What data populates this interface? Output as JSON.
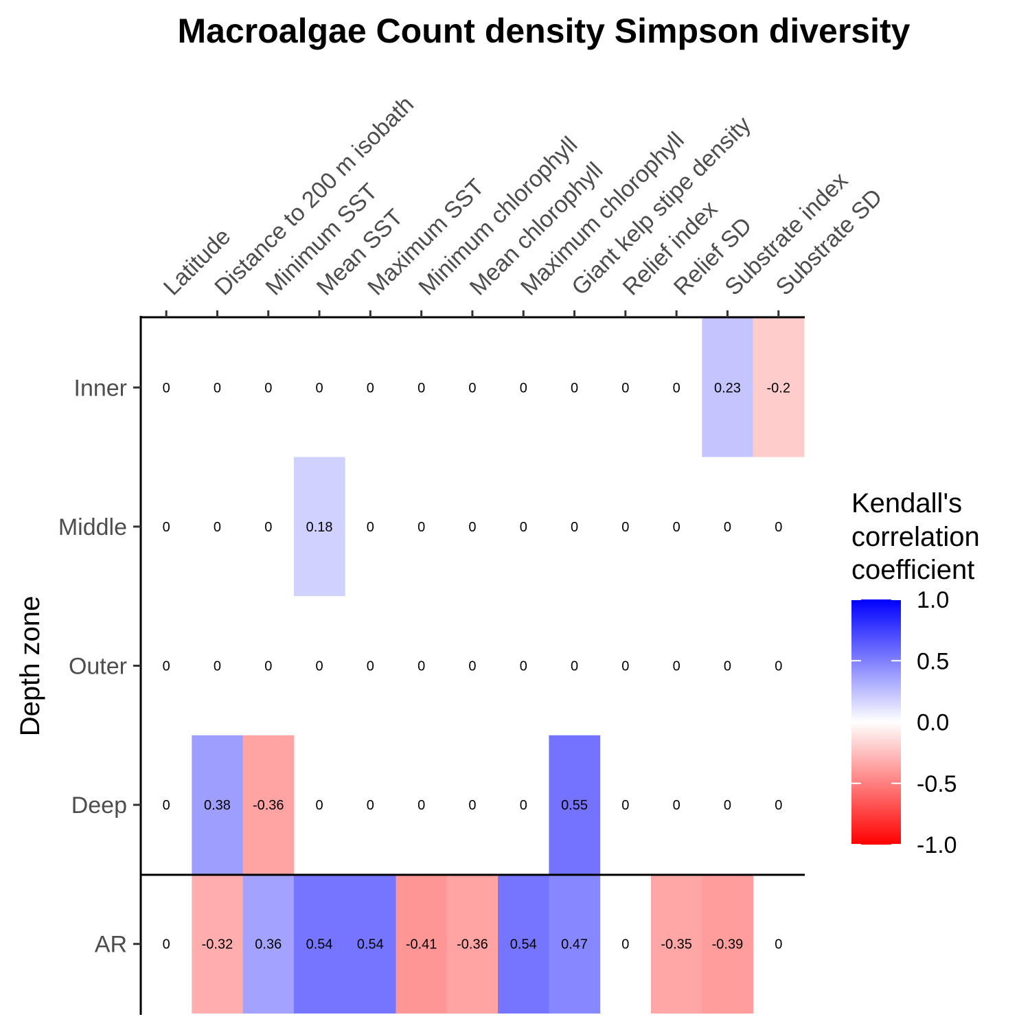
{
  "chart_data": {
    "type": "heatmap",
    "title": "Macroalgae Count density Simpson diversity",
    "ylabel": "Depth zone",
    "xlabel": "",
    "x_categories": [
      "Latitude",
      "Distance to 200 m isobath",
      "Minimum SST",
      "Mean SST",
      "Maximum SST",
      "Minimum chlorophyll",
      "Mean chlorophyll",
      "Maximum chlorophyll",
      "Giant kelp stipe density",
      "Relief index",
      "Relief SD",
      "Substrate index",
      "Substrate SD"
    ],
    "y_categories": [
      "Inner",
      "Middle",
      "Outer",
      "Deep",
      "AR"
    ],
    "values": [
      [
        0,
        0,
        0,
        0,
        0,
        0,
        0,
        0,
        0,
        0,
        0,
        0.23,
        -0.2
      ],
      [
        0,
        0,
        0,
        0.18,
        0,
        0,
        0,
        0,
        0,
        0,
        0,
        0,
        0
      ],
      [
        0,
        0,
        0,
        0,
        0,
        0,
        0,
        0,
        0,
        0,
        0,
        0,
        0
      ],
      [
        0,
        0.38,
        -0.36,
        0,
        0,
        0,
        0,
        0,
        0.55,
        0,
        0,
        0,
        0
      ],
      [
        0,
        -0.32,
        0.36,
        0.54,
        0.54,
        -0.41,
        -0.36,
        0.54,
        0.47,
        0,
        -0.35,
        -0.39,
        0
      ]
    ],
    "colorscale": {
      "low": "#ff0000",
      "mid": "#ffffff",
      "high": "#0000ff",
      "range": [
        -1,
        1
      ]
    },
    "legend": {
      "title": [
        "Kendall's",
        "correlation",
        "coefficient"
      ],
      "ticks": [
        "1.0",
        "0.5",
        "0.0",
        "-0.5",
        "-1.0"
      ],
      "position": "right"
    },
    "grid": false
  }
}
